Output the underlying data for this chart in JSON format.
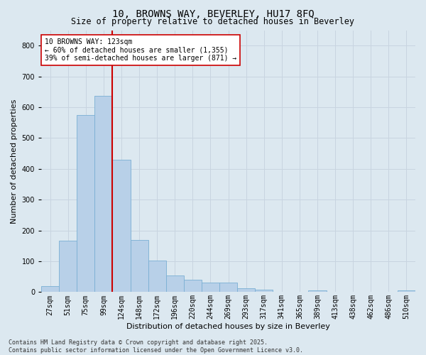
{
  "title": "10, BROWNS WAY, BEVERLEY, HU17 8FQ",
  "subtitle": "Size of property relative to detached houses in Beverley",
  "xlabel": "Distribution of detached houses by size in Beverley",
  "ylabel": "Number of detached properties",
  "categories": [
    "27sqm",
    "51sqm",
    "75sqm",
    "99sqm",
    "124sqm",
    "148sqm",
    "172sqm",
    "196sqm",
    "220sqm",
    "244sqm",
    "269sqm",
    "293sqm",
    "317sqm",
    "341sqm",
    "365sqm",
    "389sqm",
    "413sqm",
    "438sqm",
    "462sqm",
    "486sqm",
    "510sqm"
  ],
  "values": [
    20,
    168,
    574,
    638,
    430,
    170,
    103,
    55,
    40,
    30,
    30,
    13,
    8,
    0,
    0,
    5,
    0,
    0,
    0,
    0,
    5
  ],
  "bar_color": "#b8d0e8",
  "bar_edge_color": "#7aafd4",
  "grid_color": "#c8d4e0",
  "bg_color": "#dce8f0",
  "annotation_line_color": "#cc0000",
  "annotation_text_line1": "10 BROWNS WAY: 123sqm",
  "annotation_text_line2": "← 60% of detached houses are smaller (1,355)",
  "annotation_text_line3": "39% of semi-detached houses are larger (871) →",
  "annotation_box_facecolor": "#ffffff",
  "annotation_box_edge_color": "#cc0000",
  "ylim": [
    0,
    850
  ],
  "yticks": [
    0,
    100,
    200,
    300,
    400,
    500,
    600,
    700,
    800
  ],
  "footer_line1": "Contains HM Land Registry data © Crown copyright and database right 2025.",
  "footer_line2": "Contains public sector information licensed under the Open Government Licence v3.0.",
  "title_fontsize": 10,
  "subtitle_fontsize": 8.5,
  "ylabel_fontsize": 8,
  "xlabel_fontsize": 8,
  "tick_fontsize": 7,
  "footer_fontsize": 6,
  "annotation_fontsize": 7
}
